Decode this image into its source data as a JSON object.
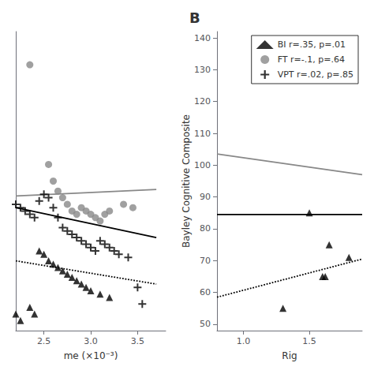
{
  "chart_data": [
    {
      "type": "scatter",
      "xlabel": "me (×10⁻³)",
      "xlim": [
        2.2,
        3.8
      ],
      "xticks": [
        2.5,
        {
          "value": 3.0,
          "label": "3.0"
        },
        3.5
      ],
      "ylim": [
        55,
        145
      ],
      "tick_labels": "x",
      "grid": false,
      "series": [
        {
          "name": "FT r=-.1, p=.64",
          "type": "scatter",
          "marker": "circle",
          "color": "#888888",
          "x": [
            2.35,
            2.55,
            2.6,
            2.65,
            2.7,
            2.75,
            2.8,
            2.85,
            2.9,
            2.95,
            3.0,
            3.05,
            3.1,
            3.15,
            3.2,
            3.35,
            3.45
          ],
          "values": [
            135,
            105,
            100,
            97,
            95,
            93,
            91,
            90,
            92,
            91,
            90,
            89,
            88,
            90,
            91,
            93,
            92
          ]
        },
        {
          "name": "VPT r=.02, p=.85",
          "type": "scatter",
          "marker": "plus",
          "color": "#000000",
          "x": [
            2.2,
            2.25,
            2.3,
            2.35,
            2.4,
            2.45,
            2.5,
            2.55,
            2.6,
            2.65,
            2.7,
            2.75,
            2.8,
            2.85,
            2.9,
            2.95,
            3.0,
            3.05,
            3.1,
            3.15,
            3.2,
            3.25,
            3.3,
            3.4,
            3.5,
            3.55
          ],
          "values": [
            93,
            92,
            91,
            90,
            89,
            94,
            96,
            95,
            92,
            89,
            86,
            85,
            84,
            83,
            82,
            81,
            80,
            79,
            82,
            81,
            80,
            79,
            78,
            77,
            68,
            63
          ]
        },
        {
          "name": "BI r=.35, p=.01",
          "type": "scatter",
          "marker": "triangle",
          "color": "#000000",
          "x": [
            2.2,
            2.25,
            2.35,
            2.4,
            2.45,
            2.5,
            2.55,
            2.6,
            2.65,
            2.7,
            2.75,
            2.8,
            2.85,
            2.9,
            2.95,
            3.0,
            3.1,
            3.2
          ],
          "values": [
            60,
            58,
            62,
            60,
            79,
            78,
            76,
            75,
            74,
            73,
            72,
            71,
            70,
            69,
            68,
            67,
            66,
            65
          ]
        },
        {
          "name": "FT r=-.1, p=.64",
          "type": "line",
          "line_style": "solid",
          "color": "#888888",
          "x": [
            2.2,
            3.7
          ],
          "values": [
            95.5,
            97.5
          ]
        },
        {
          "name": "VPT r=.02, p=.85",
          "type": "line",
          "line_style": "solid",
          "color": "#000000",
          "x": [
            2.2,
            3.7
          ],
          "values": [
            92.0,
            83.0
          ]
        },
        {
          "name": "BI r=.35, p=.01",
          "type": "line",
          "line_style": "dotted",
          "color": "#000000",
          "x": [
            2.2,
            3.7
          ],
          "values": [
            76.0,
            69.0
          ]
        }
      ]
    },
    {
      "type": "scatter",
      "title": "B",
      "xlabel": "Rig",
      "ylabel": "Bayley Cognitive Composite",
      "xlim": [
        0.8,
        1.9
      ],
      "xticks": [
        {
          "value": 1.0,
          "label": "1.0"
        },
        1.5
      ],
      "ylim": [
        48,
        142
      ],
      "yticks": [
        50,
        60,
        70,
        80,
        90,
        100,
        110,
        120,
        130,
        140
      ],
      "grid": false,
      "legend": "upper right",
      "series": [
        {
          "name": "BI r=.35, p=.01",
          "type": "scatter",
          "marker": "triangle",
          "color": "#000000",
          "x": [
            1.3,
            1.5,
            1.6,
            1.62,
            1.65,
            1.8
          ],
          "values": [
            55,
            85,
            65,
            65,
            75,
            71
          ]
        },
        {
          "name": "FT r=-.1, p=.64",
          "type": "line",
          "line_style": "solid",
          "color": "#888888",
          "x": [
            0.8,
            1.9
          ],
          "values": [
            103.5,
            97.0
          ]
        },
        {
          "name": "VPT r=.02, p=.85",
          "type": "line",
          "line_style": "solid",
          "color": "#000000",
          "x": [
            0.8,
            1.9
          ],
          "values": [
            84.5,
            84.5
          ]
        },
        {
          "name": "BI r=.35, p=.01",
          "type": "line",
          "line_style": "dotted",
          "color": "#000000",
          "x": [
            0.8,
            1.9
          ],
          "values": [
            58.5,
            70.5
          ]
        }
      ]
    }
  ]
}
